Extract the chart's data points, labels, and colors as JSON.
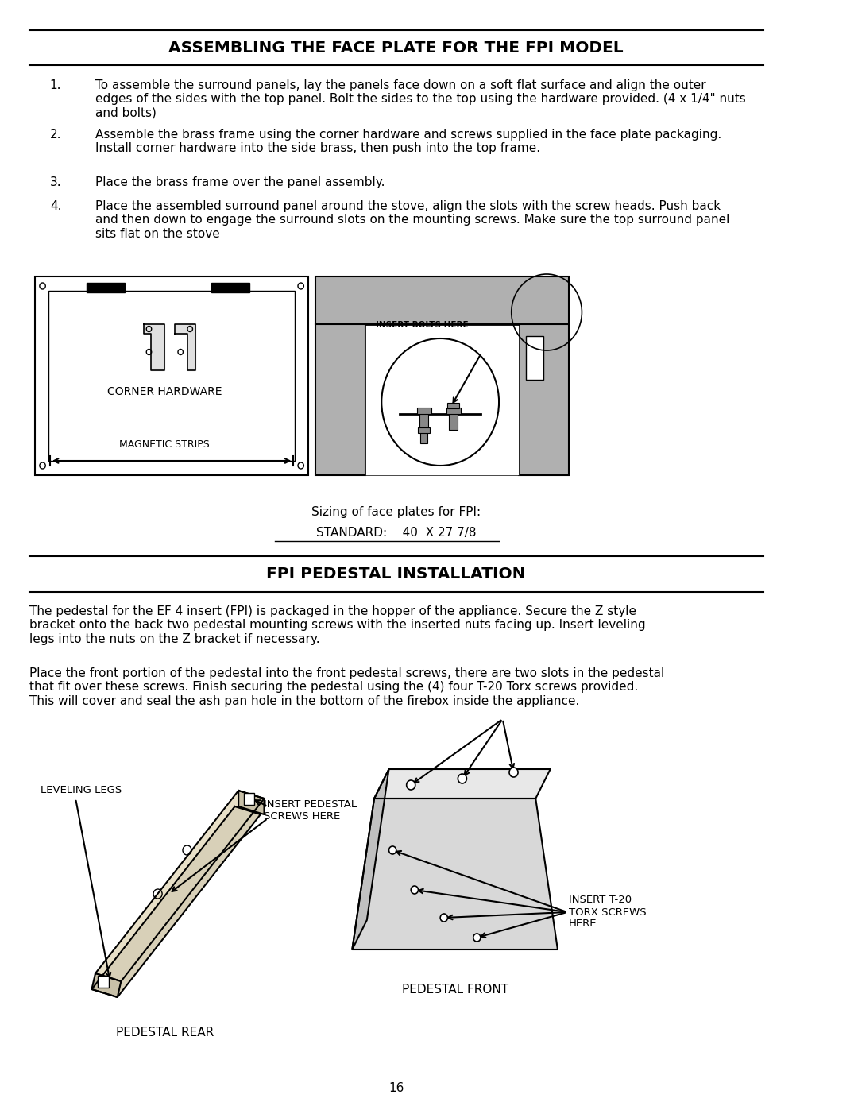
{
  "title1": "ASSEMBLING THE FACE PLATE FOR THE FPI MODEL",
  "title2": "FPI PEDESTAL INSTALLATION",
  "item1": "To assemble the surround panels, lay the panels face down on a soft flat surface and align the outer\nedges of the sides with the top panel. Bolt the sides to the top using the hardware provided. (4 x 1/4\" nuts\nand bolts)",
  "item2": "Assemble the brass frame using the corner hardware and screws supplied in the face plate packaging.\nInstall corner hardware into the side brass, then push into the top frame.",
  "item3": "Place the brass frame over the panel assembly.",
  "item4": "Place the assembled surround panel around the stove, align the slots with the screw heads. Push back\nand then down to engage the surround slots on the mounting screws. Make sure the top surround panel\nsits flat on the stove",
  "sizing_line1": "Sizing of face plates for FPI:",
  "sizing_line2": "STANDARD:    40  X 27 7/8",
  "pedestal_para1": "The pedestal for the EF 4 insert (FPI) is packaged in the hopper of the appliance. Secure the Z style\nbracket onto the back two pedestal mounting screws with the inserted nuts facing up. Insert leveling\nlegs into the nuts on the Z bracket if necessary.",
  "pedestal_para2": "Place the front portion of the pedestal into the front pedestal screws, there are two slots in the pedestal\nthat fit over these screws. Finish securing the pedestal using the (4) four T-20 Torx screws provided.\nThis will cover and seal the ash pan hole in the bottom of the firebox inside the appliance.",
  "label_leveling_legs": "LEVELING LEGS",
  "label_insert_pedestal": "INSERT PEDESTAL\nSCREWS HERE",
  "label_insert_torx": "INSERT T-20\nTORX SCREWS\nHERE",
  "label_pedestal_rear": "PEDESTAL REAR",
  "label_pedestal_front": "PEDESTAL FRONT",
  "label_corner_hardware": "CORNER HARDWARE",
  "label_magnetic_strips": "MAGNETIC STRIPS",
  "label_insert_bolts": "INSERT BOLTS HERE",
  "page_number": "16",
  "bg_color": "#ffffff",
  "text_color": "#000000",
  "gray_fill": "#b0b0b0",
  "light_gray": "#d0d0d0"
}
